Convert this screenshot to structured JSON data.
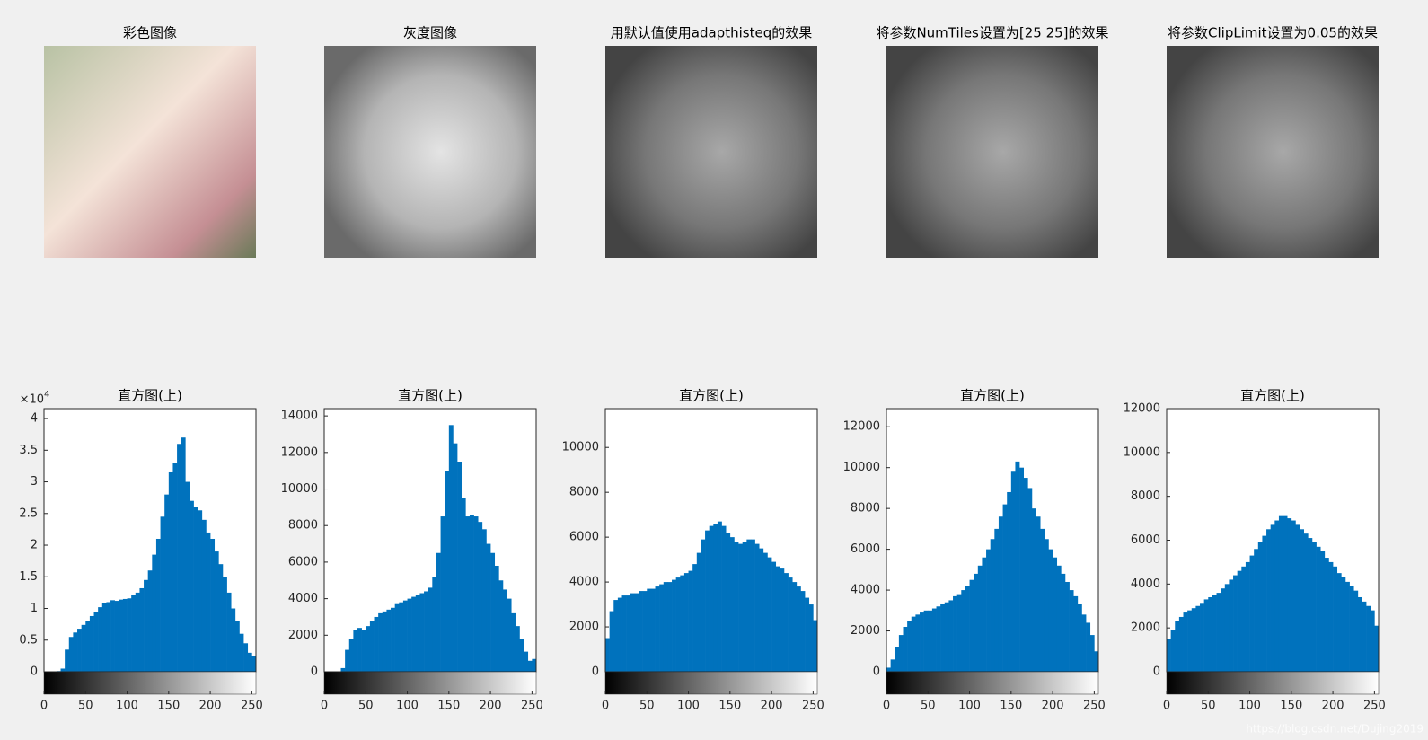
{
  "images": [
    {
      "title": "彩色图像"
    },
    {
      "title": "灰度图像"
    },
    {
      "title": "用默认值使用adapthisteq的效果"
    },
    {
      "title": "将参数NumTiles设置为[25 25]的效果"
    },
    {
      "title": "将参数ClipLimit设置为0.05的效果"
    }
  ],
  "watermark": "https://blog.csdn.net/Dujing2019",
  "chart_data": [
    {
      "type": "histogram",
      "title": "直方图(上)",
      "color": "#0072bd",
      "y_exponent_base": "×10",
      "y_exponent": "4",
      "bins": [
        0,
        5,
        10,
        15,
        20,
        25,
        30,
        35,
        40,
        45,
        50,
        55,
        60,
        65,
        70,
        75,
        80,
        85,
        90,
        95,
        100,
        105,
        110,
        115,
        120,
        125,
        130,
        135,
        140,
        145,
        150,
        155,
        160,
        165,
        170,
        175,
        180,
        185,
        190,
        195,
        200,
        205,
        210,
        215,
        220,
        225,
        230,
        235,
        240,
        245,
        250,
        255
      ],
      "values": [
        0,
        0,
        0,
        100,
        500,
        3500,
        5500,
        6200,
        6800,
        7400,
        8000,
        8800,
        9500,
        10200,
        10800,
        11000,
        11300,
        11200,
        11400,
        11500,
        11600,
        12200,
        12500,
        13200,
        14500,
        16000,
        18500,
        21000,
        24500,
        28000,
        31500,
        33000,
        36000,
        37000,
        30000,
        27000,
        26000,
        25500,
        24000,
        22000,
        21000,
        19000,
        17000,
        15000,
        12500,
        10000,
        8000,
        6000,
        4500,
        3000,
        2500
      ],
      "xlim": [
        0,
        255
      ],
      "xticks": [
        0,
        50,
        100,
        150,
        200,
        250
      ],
      "ylim": [
        0,
        41570
      ],
      "yticks": [
        0,
        {
          "value": 5000,
          "label": "0.5"
        },
        {
          "value": 10000,
          "label": "1"
        },
        {
          "value": 15000,
          "label": "1.5"
        },
        {
          "value": 20000,
          "label": "2"
        },
        {
          "value": 25000,
          "label": "2.5"
        },
        {
          "value": 30000,
          "label": "3"
        },
        {
          "value": 35000,
          "label": "3.5"
        },
        {
          "value": 40000,
          "label": "4"
        }
      ]
    },
    {
      "type": "histogram",
      "title": "直方图(上)",
      "color": "#0072bd",
      "bins": [
        0,
        5,
        10,
        15,
        20,
        25,
        30,
        35,
        40,
        45,
        50,
        55,
        60,
        65,
        70,
        75,
        80,
        85,
        90,
        95,
        100,
        105,
        110,
        115,
        120,
        125,
        130,
        135,
        140,
        145,
        150,
        155,
        160,
        165,
        170,
        175,
        180,
        185,
        190,
        195,
        200,
        205,
        210,
        215,
        220,
        225,
        230,
        235,
        240,
        245,
        250,
        255
      ],
      "values": [
        0,
        0,
        0,
        0,
        200,
        1200,
        1800,
        2300,
        2400,
        2300,
        2500,
        2800,
        3000,
        3200,
        3300,
        3400,
        3500,
        3700,
        3800,
        3900,
        4000,
        4100,
        4200,
        4300,
        4400,
        4600,
        5200,
        6500,
        8500,
        11000,
        13500,
        12500,
        11500,
        9500,
        8500,
        8600,
        8500,
        8200,
        7800,
        7000,
        6500,
        5800,
        5000,
        4500,
        4000,
        3200,
        2500,
        1800,
        1100,
        600,
        700
      ],
      "xlim": [
        0,
        255
      ],
      "xticks": [
        0,
        50,
        100,
        150,
        200,
        250
      ],
      "ylim": [
        0,
        14400
      ],
      "yticks": [
        0,
        2000,
        4000,
        6000,
        8000,
        10000,
        12000,
        14000
      ]
    },
    {
      "type": "histogram",
      "title": "直方图(上)",
      "color": "#0072bd",
      "bins": [
        0,
        5,
        10,
        15,
        20,
        25,
        30,
        35,
        40,
        45,
        50,
        55,
        60,
        65,
        70,
        75,
        80,
        85,
        90,
        95,
        100,
        105,
        110,
        115,
        120,
        125,
        130,
        135,
        140,
        145,
        150,
        155,
        160,
        165,
        170,
        175,
        180,
        185,
        190,
        195,
        200,
        205,
        210,
        215,
        220,
        225,
        230,
        235,
        240,
        245,
        250,
        255
      ],
      "values": [
        1500,
        2700,
        3200,
        3300,
        3400,
        3400,
        3500,
        3500,
        3600,
        3600,
        3700,
        3700,
        3800,
        3900,
        4000,
        4000,
        4100,
        4200,
        4300,
        4400,
        4500,
        4800,
        5300,
        5900,
        6300,
        6500,
        6600,
        6700,
        6500,
        6200,
        6000,
        5800,
        5700,
        5800,
        5900,
        5900,
        5700,
        5500,
        5300,
        5100,
        4900,
        4700,
        4600,
        4400,
        4200,
        4000,
        3800,
        3600,
        3300,
        3000,
        2300
      ],
      "xlim": [
        0,
        255
      ],
      "xticks": [
        0,
        50,
        100,
        150,
        200,
        250
      ],
      "ylim": [
        0,
        11730
      ],
      "yticks": [
        0,
        2000,
        4000,
        6000,
        8000,
        10000
      ]
    },
    {
      "type": "histogram",
      "title": "直方图(上)",
      "color": "#0072bd",
      "bins": [
        0,
        5,
        10,
        15,
        20,
        25,
        30,
        35,
        40,
        45,
        50,
        55,
        60,
        65,
        70,
        75,
        80,
        85,
        90,
        95,
        100,
        105,
        110,
        115,
        120,
        125,
        130,
        135,
        140,
        145,
        150,
        155,
        160,
        165,
        170,
        175,
        180,
        185,
        190,
        195,
        200,
        205,
        210,
        215,
        220,
        225,
        230,
        235,
        240,
        245,
        250,
        255
      ],
      "values": [
        200,
        600,
        1200,
        1800,
        2200,
        2500,
        2700,
        2800,
        2900,
        3000,
        3000,
        3100,
        3200,
        3300,
        3400,
        3500,
        3700,
        3800,
        4000,
        4200,
        4500,
        4800,
        5200,
        5600,
        6000,
        6500,
        7000,
        7600,
        8200,
        8800,
        9800,
        10300,
        10000,
        9500,
        9000,
        8000,
        7600,
        7000,
        6500,
        6000,
        5600,
        5200,
        4800,
        4400,
        4000,
        3700,
        3300,
        2800,
        2400,
        1800,
        1000
      ],
      "xlim": [
        0,
        255
      ],
      "xticks": [
        0,
        50,
        100,
        150,
        200,
        250
      ],
      "ylim": [
        0,
        12890
      ],
      "yticks": [
        0,
        2000,
        4000,
        6000,
        8000,
        10000,
        12000
      ]
    },
    {
      "type": "histogram",
      "title": "直方图(上)",
      "color": "#0072bd",
      "bins": [
        0,
        5,
        10,
        15,
        20,
        25,
        30,
        35,
        40,
        45,
        50,
        55,
        60,
        65,
        70,
        75,
        80,
        85,
        90,
        95,
        100,
        105,
        110,
        115,
        120,
        125,
        130,
        135,
        140,
        145,
        150,
        155,
        160,
        165,
        170,
        175,
        180,
        185,
        190,
        195,
        200,
        205,
        210,
        215,
        220,
        225,
        230,
        235,
        240,
        245,
        250,
        255
      ],
      "values": [
        1500,
        1900,
        2300,
        2500,
        2700,
        2800,
        2900,
        3000,
        3100,
        3300,
        3400,
        3500,
        3600,
        3800,
        4000,
        4200,
        4400,
        4600,
        4800,
        5000,
        5300,
        5600,
        5900,
        6200,
        6500,
        6700,
        6900,
        7100,
        7100,
        7000,
        6900,
        6700,
        6500,
        6300,
        6100,
        5900,
        5700,
        5500,
        5200,
        5000,
        4800,
        4500,
        4300,
        4100,
        3900,
        3700,
        3400,
        3200,
        3000,
        2800,
        2100
      ],
      "xlim": [
        0,
        255
      ],
      "xticks": [
        0,
        50,
        100,
        150,
        200,
        250
      ],
      "ylim": [
        0,
        12000
      ],
      "yticks": [
        0,
        2000,
        4000,
        6000,
        8000,
        10000,
        12000
      ]
    }
  ]
}
